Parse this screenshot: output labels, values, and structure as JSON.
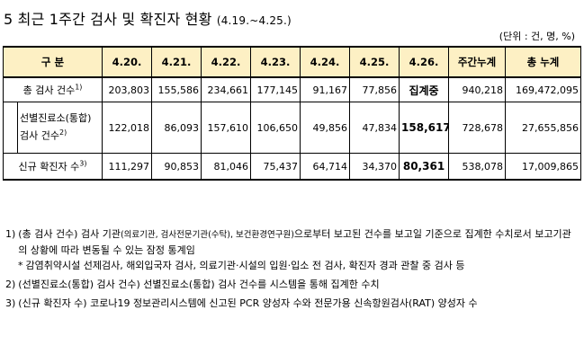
{
  "title": {
    "main": "5 최근 1주간 검사 및 확진자 현황",
    "period": "(4.19.~4.25.)"
  },
  "unit": "(단위 : 건, 명, %)",
  "table": {
    "headers": [
      "구 분",
      "4.20.",
      "4.21.",
      "4.22.",
      "4.23.",
      "4.24.",
      "4.25.",
      "4.26.",
      "주간누계",
      "총 누계"
    ],
    "rows": [
      {
        "label": "총 검사 건수",
        "sup": "1)",
        "values": [
          "203,803",
          "155,586",
          "234,661",
          "177,145",
          "91,167",
          "77,856",
          "집계중",
          "940,218",
          "169,472,095"
        ]
      },
      {
        "label_line1": "선별진료소(통합)",
        "label_line2": "검사 건수",
        "sup": "2)",
        "values": [
          "122,018",
          "86,093",
          "157,610",
          "106,650",
          "49,856",
          "47,834",
          "158,617",
          "728,678",
          "27,655,856"
        ]
      },
      {
        "label": "신규 확진자 수",
        "sup": "3)",
        "values": [
          "111,297",
          "90,853",
          "81,046",
          "75,437",
          "64,714",
          "34,370",
          "80,361",
          "538,078",
          "17,009,865"
        ]
      }
    ]
  },
  "notes": [
    {
      "mark": "1)",
      "text_a": "(총 검사 건수) 검사 기관",
      "text_small": "(의료기관, 검사전문기관(수탁), 보건환경연구원)",
      "text_b": "으로부터 보고된 건수를 보고일 기준으로 집계한 수치로서 보고기관의 상황에 따라 변동될 수 있는 잠정 통계임"
    },
    {
      "mark": "*",
      "text": "감염취약시설 선제검사, 해외입국자 검사, 의료기관·시설의 입원·입소 전 검사, 확진자 경과 관찰 중 검사 등"
    },
    {
      "mark": "2)",
      "text": "(선별진료소(통합) 검사 건수) 선별진료소(통합) 검사 건수를 시스템을 통해 집계한 수치"
    },
    {
      "mark": "3)",
      "text": "(신규 확진자 수) 코로나19 정보관리시스템에 신고된 PCR 양성자 수와 전문가용 신속항원검사(RAT) 양성자 수"
    }
  ]
}
